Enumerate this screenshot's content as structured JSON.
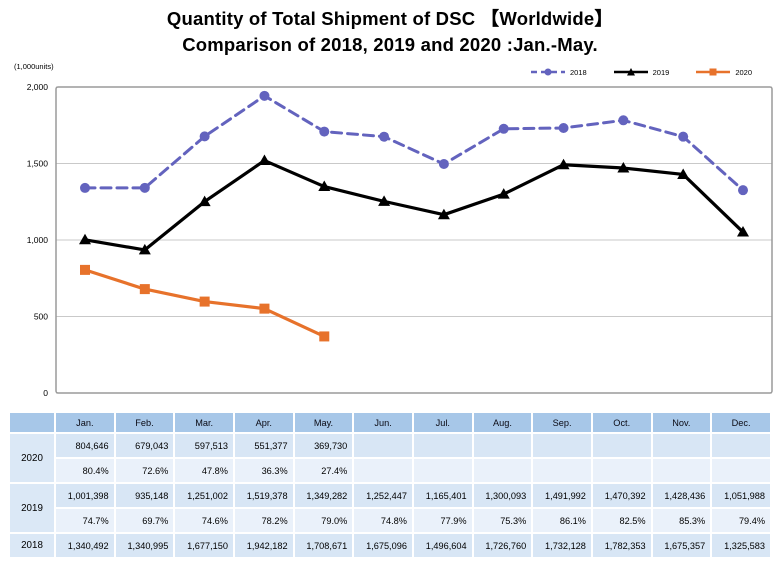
{
  "title": {
    "line1": "Quantity of Total Shipment of DSC 【Worldwide】",
    "line2": "Comparison of 2018, 2019 and 2020 :Jan.-May."
  },
  "chart_data": {
    "type": "line",
    "title": "Quantity of Total Shipment of DSC 【Worldwide】 Comparison of 2018, 2019 and 2020 :Jan.-May.",
    "unit_label": "(1,000units)",
    "x_categories": [
      "Jan.",
      "Feb.",
      "Mar.",
      "Apr.",
      "May.",
      "Jun.",
      "Jul.",
      "Aug.",
      "Sep.",
      "Oct.",
      "Nov.",
      "Dec."
    ],
    "ylim": [
      0,
      2000000
    ],
    "y_ticks": [
      {
        "label": "0",
        "value": 0
      },
      {
        "label": "500",
        "value": 500000
      },
      {
        "label": "1,000",
        "value": 1000000
      },
      {
        "label": "1,500",
        "value": 1500000
      },
      {
        "label": "2,000",
        "value": 2000000
      }
    ],
    "grid": true,
    "legend_position": "top-right",
    "frame_color": "#9A9A9A",
    "grid_color": "#C9C9C9",
    "series": [
      {
        "name": "2018",
        "color": "#6363BE",
        "style": "dashed",
        "marker": "circle",
        "values": [
          1340492,
          1340995,
          1677150,
          1942182,
          1708671,
          1675096,
          1496604,
          1726760,
          1732128,
          1782353,
          1675357,
          1325583
        ]
      },
      {
        "name": "2019",
        "color": "#000000",
        "style": "solid",
        "marker": "triangle",
        "values": [
          1001398,
          935148,
          1251002,
          1519378,
          1349282,
          1252447,
          1165401,
          1300093,
          1491992,
          1470392,
          1428436,
          1051988
        ]
      },
      {
        "name": "2020",
        "color": "#E7722B",
        "style": "solid",
        "marker": "square",
        "values": [
          804646,
          679043,
          597513,
          551377,
          369730
        ]
      }
    ]
  },
  "table": {
    "corner": "",
    "months": [
      "Jan.",
      "Feb.",
      "Mar.",
      "Apr.",
      "May.",
      "Jun.",
      "Jul.",
      "Aug.",
      "Sep.",
      "Oct.",
      "Nov.",
      "Dec."
    ],
    "groups": [
      {
        "year": "2020",
        "values": [
          "804,646",
          "679,043",
          "597,513",
          "551,377",
          "369,730",
          "",
          "",
          "",
          "",
          "",
          "",
          ""
        ],
        "percents": [
          "80.4%",
          "72.6%",
          "47.8%",
          "36.3%",
          "27.4%",
          "",
          "",
          "",
          "",
          "",
          "",
          ""
        ]
      },
      {
        "year": "2019",
        "values": [
          "1,001,398",
          "935,148",
          "1,251,002",
          "1,519,378",
          "1,349,282",
          "1,252,447",
          "1,165,401",
          "1,300,093",
          "1,491,992",
          "1,470,392",
          "1,428,436",
          "1,051,988"
        ],
        "percents": [
          "74.7%",
          "69.7%",
          "74.6%",
          "78.2%",
          "79.0%",
          "74.8%",
          "77.9%",
          "75.3%",
          "86.1%",
          "82.5%",
          "85.3%",
          "79.4%"
        ]
      },
      {
        "year": "2018",
        "values": [
          "1,340,492",
          "1,340,995",
          "1,677,150",
          "1,942,182",
          "1,708,671",
          "1,675,096",
          "1,496,604",
          "1,726,760",
          "1,732,128",
          "1,782,353",
          "1,675,357",
          "1,325,583"
        ],
        "percents": null
      }
    ]
  }
}
